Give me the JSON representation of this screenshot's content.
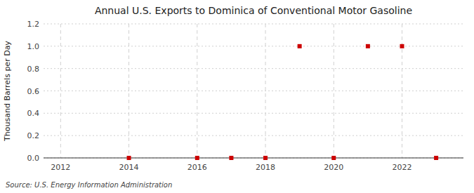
{
  "chart_data": {
    "type": "scatter",
    "title": "Annual U.S. Exports to Dominica of Conventional Motor Gasoline",
    "ylabel": "Thousand Barrels per Day",
    "annotations": [
      "Source: U.S. Energy Information Administration"
    ],
    "x": [
      2014,
      2016,
      2017,
      2018,
      2019,
      2020,
      2021,
      2022,
      2023
    ],
    "values": [
      0.0,
      0.0,
      0.0,
      0.0,
      1.0,
      0.0,
      1.0,
      1.0,
      0.0
    ],
    "color": "#cc0000",
    "marker": "square",
    "xlim": [
      2011.5,
      2023.8
    ],
    "ylim": [
      0.0,
      1.2
    ],
    "xticks": [
      2012,
      2014,
      2016,
      2018,
      2020,
      2022
    ],
    "yticks": [
      {
        "value": 0.0,
        "label": "0.0"
      },
      0.2,
      0.4,
      0.6,
      0.8,
      {
        "value": 1.0,
        "label": "1.0"
      },
      1.2
    ],
    "grid": true
  }
}
